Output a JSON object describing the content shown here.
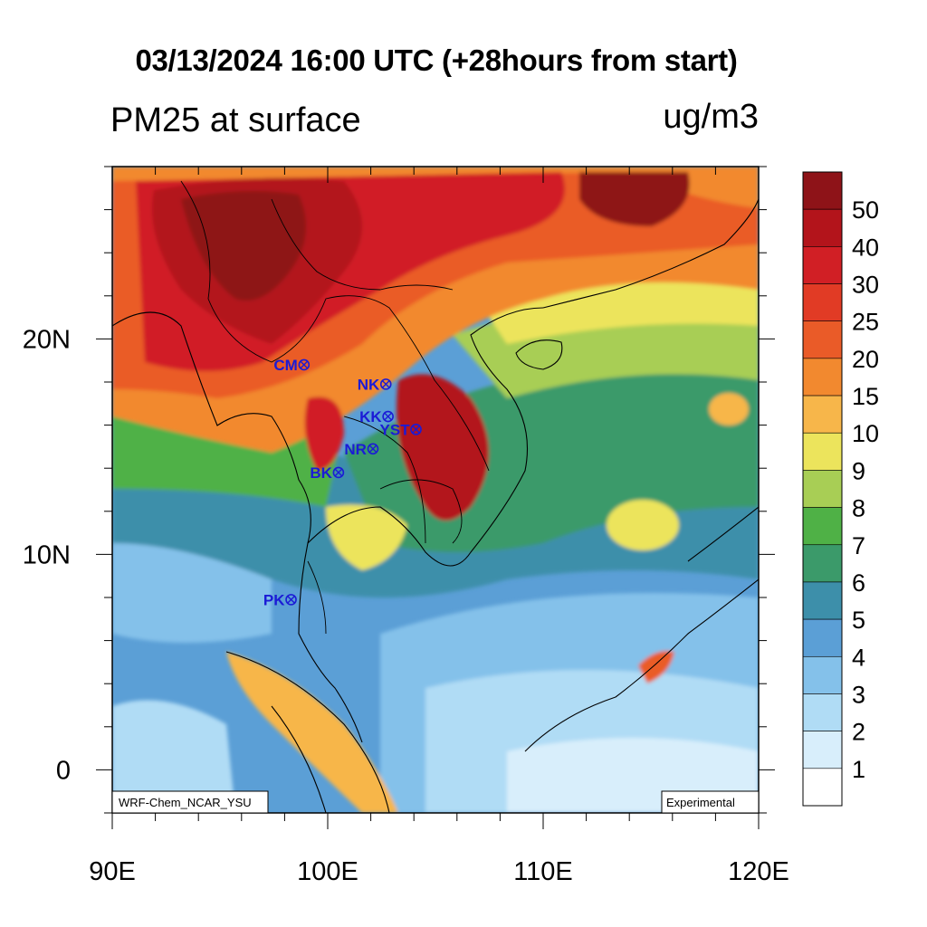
{
  "header": {
    "title": "03/13/2024 16:00 UTC (+28hours from start)",
    "subtitle": "PM25 at surface",
    "units": "ug/m3"
  },
  "map": {
    "lon_range": [
      90,
      120
    ],
    "lat_range": [
      -2,
      28
    ],
    "x_ticks": [
      {
        "value": 90,
        "label": "90E"
      },
      {
        "value": 100,
        "label": "100E"
      },
      {
        "value": 110,
        "label": "110E"
      },
      {
        "value": 120,
        "label": "120E"
      }
    ],
    "y_ticks": [
      {
        "value": 0,
        "label": "0"
      },
      {
        "value": 10,
        "label": "10N"
      },
      {
        "value": 20,
        "label": "20N"
      }
    ],
    "model_label": "WRF-Chem_NCAR_YSU",
    "status_label": "Experimental"
  },
  "stations": [
    {
      "code": "CM",
      "lon": 98.9,
      "lat": 18.8
    },
    {
      "code": "NK",
      "lon": 102.7,
      "lat": 17.9
    },
    {
      "code": "KK",
      "lon": 102.8,
      "lat": 16.4
    },
    {
      "code": "YST",
      "lon": 104.1,
      "lat": 15.8
    },
    {
      "code": "NR",
      "lon": 102.1,
      "lat": 14.9
    },
    {
      "code": "BK",
      "lon": 100.5,
      "lat": 13.8
    },
    {
      "code": "PK",
      "lon": 98.3,
      "lat": 7.9
    }
  ],
  "legend": {
    "levels": [
      {
        "label": "50",
        "color": "#8e1318"
      },
      {
        "label": "40",
        "color": "#b3141b"
      },
      {
        "label": "30",
        "color": "#d11f25"
      },
      {
        "label": "25",
        "color": "#e13b25"
      },
      {
        "label": "20",
        "color": "#ea5b28"
      },
      {
        "label": "15",
        "color": "#f2892f"
      },
      {
        "label": "10",
        "color": "#f7b64a"
      },
      {
        "label": "9",
        "color": "#ece45c"
      },
      {
        "label": "8",
        "color": "#a8ce55"
      },
      {
        "label": "7",
        "color": "#4fb146"
      },
      {
        "label": "6",
        "color": "#3b9a6a"
      },
      {
        "label": "5",
        "color": "#3d8faa"
      },
      {
        "label": "4",
        "color": "#5b9fd6"
      },
      {
        "label": "3",
        "color": "#84c1ea"
      },
      {
        "label": "2",
        "color": "#b0dcf5"
      },
      {
        "label": "1",
        "color": "#d8eefb"
      }
    ],
    "bottom_color": "#ffffff"
  }
}
